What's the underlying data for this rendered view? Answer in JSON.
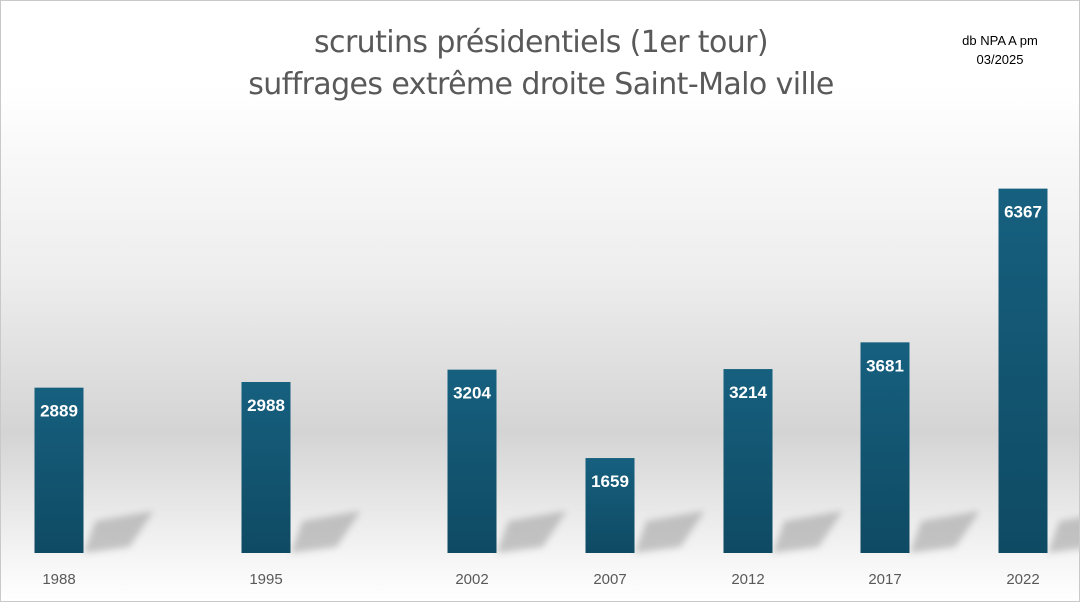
{
  "title_line1": "scrutins présidentiels (1er tour)",
  "title_line2": "suffrages extrême droite Saint-Malo ville",
  "note_line1": "db NPA A pm",
  "note_line2": "03/2025",
  "colors": {
    "bar_top": "#16607f",
    "bar_bottom": "#0f4a63",
    "label_text": "#ffffff",
    "axis_text": "#595959"
  },
  "chart_data": {
    "type": "bar",
    "categories": [
      "1988",
      "1995",
      "2002",
      "2007",
      "2012",
      "2017",
      "2022"
    ],
    "values": [
      2889,
      2988,
      3204,
      1659,
      3214,
      3681,
      6367
    ],
    "data_labels": [
      "2889",
      "2988",
      "3204",
      "1659",
      "3214",
      "3681",
      "6367"
    ],
    "ylim": [
      0,
      6640
    ],
    "grid": false,
    "legend": "none",
    "y_axis_visible": false
  }
}
